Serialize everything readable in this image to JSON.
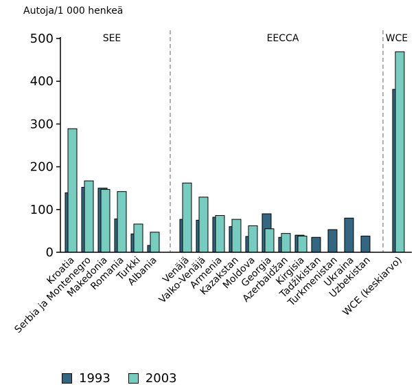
{
  "chart_data": {
    "type": "bar",
    "ylabel": "Autoja/1 000 henkeä",
    "ylim": [
      0,
      500
    ],
    "yticks": [
      0,
      100,
      200,
      300,
      400,
      500
    ],
    "grid": false,
    "legend_position": "bottom-left",
    "groups": [
      "SEE",
      "EECCA",
      "WCE"
    ],
    "categories": [
      "Kroatia",
      "Serbia ja Montenegro",
      "Makedonia",
      "Romania",
      "Turkki",
      "Albania",
      "Venäjä",
      "Valko-Venäjä",
      "Armenia",
      "Kazakstan",
      "Moldova",
      "Georgia",
      "Azerbaidžan",
      "Kirgisia",
      "Tadžikistan",
      "Turkmenistan",
      "Ukraina",
      "Uzbekistan",
      "WCE (keskiarvo)"
    ],
    "group_membership": [
      0,
      0,
      0,
      0,
      0,
      0,
      1,
      1,
      1,
      1,
      1,
      1,
      1,
      1,
      1,
      1,
      1,
      1,
      2
    ],
    "series": [
      {
        "name": "1993",
        "color": "#336680",
        "values": [
          139,
          152,
          150,
          78,
          43,
          16,
          77,
          75,
          82,
          60,
          37,
          90,
          35,
          40,
          35,
          53,
          80,
          38,
          381
        ]
      },
      {
        "name": "2003",
        "color": "#77ccc0",
        "values": [
          289,
          167,
          147,
          142,
          66,
          47,
          162,
          129,
          86,
          77,
          62,
          55,
          44,
          38,
          null,
          null,
          null,
          null,
          469
        ]
      }
    ]
  }
}
